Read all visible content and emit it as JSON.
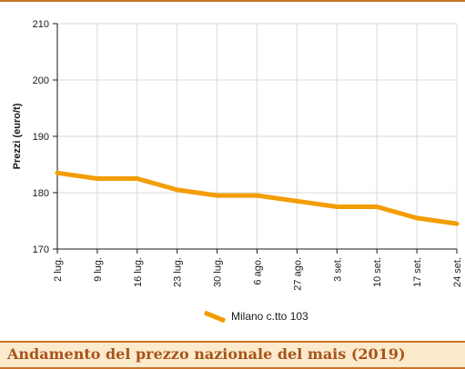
{
  "chart_data": {
    "type": "line",
    "title": "Andamento del prezzo nazionale del mais (2019)",
    "ylabel": "Prezzi (euro/t)",
    "xlabel": "",
    "ylim": [
      170,
      210
    ],
    "yticks": [
      "170",
      "180",
      "190",
      "200",
      "210"
    ],
    "categories": [
      "2 lug.",
      "9 lug.",
      "16 lug.",
      "23 lug.",
      "30 lug.",
      "6 ago.",
      "27 ago.",
      "3 set.",
      "10 set.",
      "17 set.",
      "24 set."
    ],
    "series": [
      {
        "name": "Milano  c.tto 103",
        "color": "#f29d00",
        "values": [
          183.5,
          182.5,
          182.5,
          180.5,
          179.5,
          179.5,
          178.5,
          177.5,
          177.5,
          175.5,
          174.5
        ]
      }
    ],
    "grid": true,
    "legend_position": "bottom"
  }
}
